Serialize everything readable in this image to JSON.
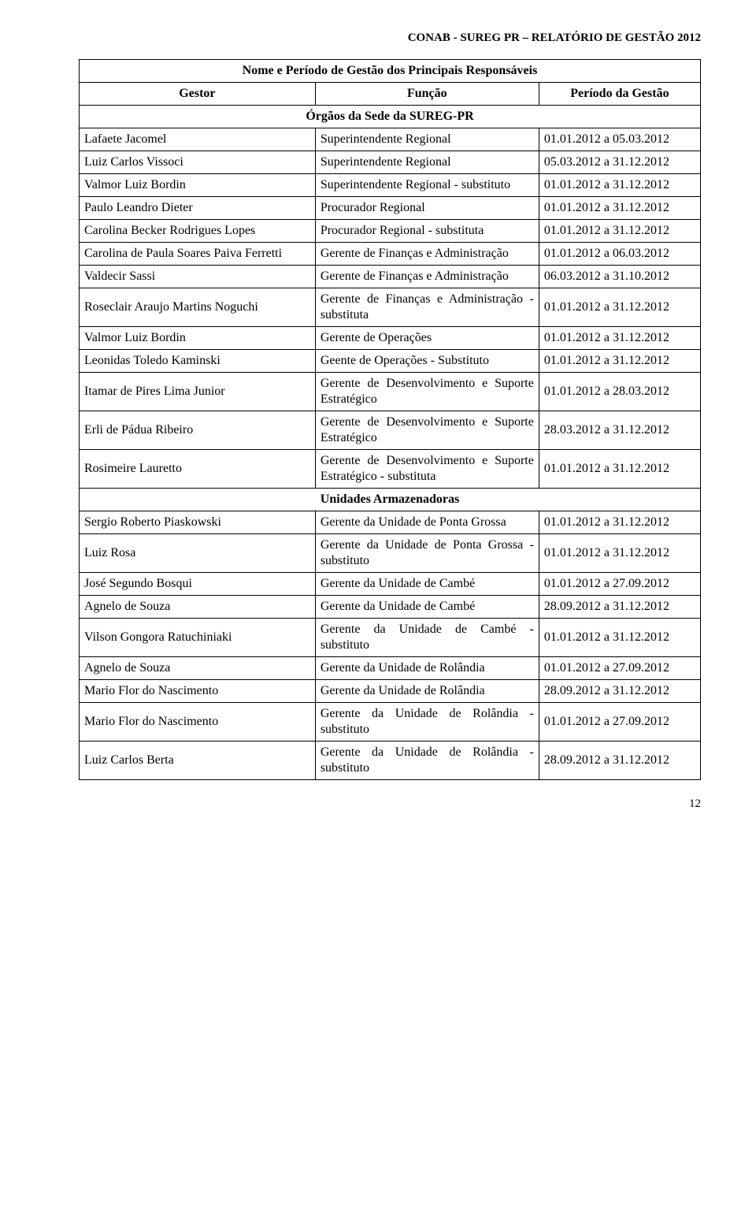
{
  "header": {
    "text": "CONAB - SUREG PR – RELATÓRIO DE GESTÃO 2012"
  },
  "table": {
    "title": "Nome e Período de Gestão dos Principais Responsáveis",
    "columns": [
      "Gestor",
      "Função",
      "Período da Gestão"
    ],
    "section1": "Órgãos da Sede da SUREG-PR",
    "section2": "Unidades Armazenadoras",
    "rows1": [
      {
        "g": "Lafaete Jacomel",
        "f": "Superintendente Regional",
        "p": "01.01.2012 a 05.03.2012"
      },
      {
        "g": "Luiz Carlos Vissoci",
        "f": "Superintendente Regional",
        "p": "05.03.2012 a 31.12.2012"
      },
      {
        "g": "Valmor Luiz Bordin",
        "f": "Superintendente Regional - substituto",
        "p": "01.01.2012 a 31.12.2012"
      },
      {
        "g": "Paulo Leandro Dieter",
        "f": "Procurador Regional",
        "p": "01.01.2012 a 31.12.2012"
      },
      {
        "g": "Carolina Becker Rodrigues Lopes",
        "f": "Procurador Regional - substituta",
        "p": "01.01.2012 a 31.12.2012"
      },
      {
        "g": "Carolina de Paula Soares Paiva Ferretti",
        "f": "Gerente de Finanças e Administração",
        "p": "01.01.2012 a 06.03.2012"
      },
      {
        "g": "Valdecir Sassi",
        "f": "Gerente de Finanças e Administração",
        "p": "06.03.2012 a 31.10.2012"
      },
      {
        "g": "Roseclair Araujo Martins Noguchi",
        "f": "Gerente de Finanças e Administração - substituta",
        "p": "01.01.2012 a 31.12.2012"
      },
      {
        "g": "Valmor Luiz Bordin",
        "f": "Gerente de Operações",
        "p": "01.01.2012 a 31.12.2012"
      },
      {
        "g": "Leonidas Toledo Kaminski",
        "f": "Geente de Operações - Substituto",
        "p": "01.01.2012 a 31.12.2012"
      },
      {
        "g": "Itamar de Pires Lima Junior",
        "f": "Gerente de Desenvolvimento e Suporte Estratégico",
        "p": "01.01.2012 a 28.03.2012"
      },
      {
        "g": "Erli de Pádua Ribeiro",
        "f": "Gerente de Desenvolvimento e Suporte Estratégico",
        "p": "28.03.2012 a 31.12.2012"
      },
      {
        "g": "Rosimeire Lauretto",
        "f": "Gerente de Desenvolvimento e Suporte Estratégico - substituta",
        "p": "01.01.2012 a 31.12.2012"
      }
    ],
    "rows2": [
      {
        "g": "Sergio Roberto Piaskowski",
        "f": "Gerente da Unidade de Ponta Grossa",
        "p": "01.01.2012 a 31.12.2012"
      },
      {
        "g": "Luiz Rosa",
        "f": "Gerente da Unidade de Ponta Grossa - substituto",
        "p": "01.01.2012 a 31.12.2012"
      },
      {
        "g": "José Segundo Bosqui",
        "f": "Gerente da Unidade de Cambé",
        "p": "01.01.2012 a 27.09.2012"
      },
      {
        "g": "Agnelo de Souza",
        "f": "Gerente da Unidade de Cambé",
        "p": "28.09.2012 a 31.12.2012"
      },
      {
        "g": "Vilson Gongora Ratuchiniaki",
        "f": "Gerente da Unidade de Cambé - substituto",
        "p": "01.01.2012 a 31.12.2012"
      },
      {
        "g": "Agnelo de Souza",
        "f": "Gerente da Unidade de Rolândia",
        "p": "01.01.2012 a 27.09.2012"
      },
      {
        "g": "Mario Flor do Nascimento",
        "f": "Gerente da Unidade de Rolândia",
        "p": "28.09.2012 a 31.12.2012"
      },
      {
        "g": "Mario Flor do Nascimento",
        "f": "Gerente da Unidade de Rolândia - substituto",
        "p": "01.01.2012 a 27.09.2012"
      },
      {
        "g": "Luiz Carlos Berta",
        "f": "Gerente da Unidade de Rolândia - substituto",
        "p": "28.09.2012 a 31.12.2012"
      }
    ]
  },
  "footer": {
    "page_number": "12"
  }
}
